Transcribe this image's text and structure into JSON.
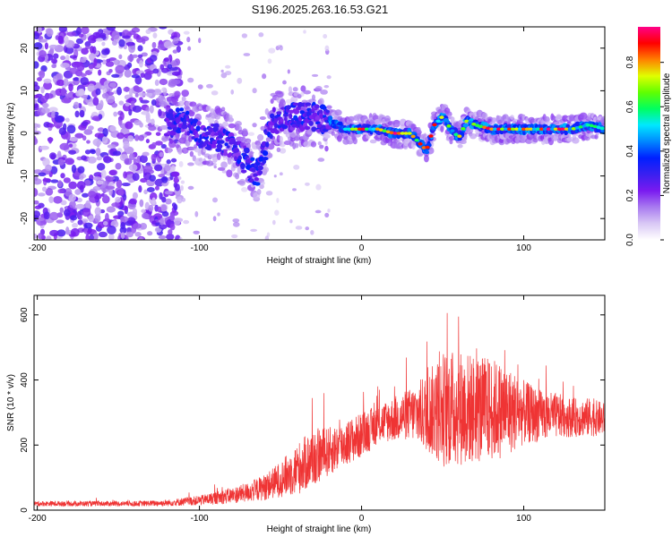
{
  "title": "S196.2025.263.16.53.G21",
  "chart_data": [
    {
      "type": "heatmap",
      "xlabel": "Height of straight line (km)",
      "ylabel": "Frequency (Hz)",
      "xlim": [
        -202,
        150
      ],
      "ylim": [
        -25,
        25
      ],
      "xticks": [
        -200,
        -100,
        0,
        100
      ],
      "yticks": [
        -20,
        -10,
        0,
        10,
        20
      ],
      "colorbar": {
        "label": "Normalized spectral amplitude",
        "range": [
          0,
          0.96
        ],
        "ticks": [
          0.0,
          0.2,
          0.4,
          0.6,
          0.8
        ],
        "colors": [
          "#ffffff",
          "#d9c8f5",
          "#a87af0",
          "#7a1af0",
          "#3a20f0",
          "#0020ff",
          "#0088ff",
          "#00e8ff",
          "#00ff60",
          "#60ff00",
          "#e0ff00",
          "#ff8000",
          "#ff0000",
          "#ff0088"
        ]
      },
      "ridge": {
        "x": [
          -120,
          -110,
          -100,
          -90,
          -80,
          -70,
          -65,
          -60,
          -55,
          -50,
          -40,
          -30,
          -20,
          -10,
          0,
          10,
          20,
          30,
          35,
          40,
          45,
          50,
          55,
          60,
          65,
          70,
          80,
          90,
          100,
          110,
          120,
          130,
          140,
          150
        ],
        "frequency_hz": [
          2,
          3,
          0,
          -1,
          -3,
          -7,
          -10,
          -4,
          3,
          3,
          4,
          4,
          3,
          1,
          1,
          1,
          0,
          0,
          -2,
          -4,
          2,
          4,
          1,
          -1,
          3,
          2,
          1,
          1,
          1,
          1,
          1,
          1,
          2,
          1
        ]
      }
    },
    {
      "type": "line",
      "xlabel": "Height of straight line (km)",
      "ylabel": "SNR (10 * v/v)",
      "xlim": [
        -202,
        150
      ],
      "ylim": [
        0,
        660
      ],
      "xticks": [
        -200,
        -100,
        0,
        100
      ],
      "yticks": [
        0,
        200,
        400,
        600
      ],
      "color": "#ef3434",
      "envelope": {
        "x": [
          -202,
          -180,
          -160,
          -140,
          -120,
          -100,
          -80,
          -70,
          -60,
          -50,
          -40,
          -30,
          -20,
          -10,
          0,
          10,
          20,
          30,
          40,
          50,
          60,
          70,
          80,
          90,
          100,
          110,
          120,
          130,
          140,
          150
        ],
        "mean": [
          20,
          20,
          20,
          20,
          22,
          30,
          45,
          55,
          70,
          95,
          125,
          160,
          180,
          205,
          230,
          265,
          280,
          295,
          300,
          310,
          315,
          310,
          310,
          305,
          300,
          290,
          290,
          285,
          285,
          280
        ],
        "amplitude": [
          8,
          8,
          8,
          8,
          10,
          15,
          25,
          30,
          40,
          55,
          80,
          90,
          75,
          70,
          70,
          60,
          70,
          80,
          120,
          180,
          180,
          170,
          160,
          140,
          100,
          80,
          70,
          60,
          60,
          50
        ]
      }
    }
  ]
}
